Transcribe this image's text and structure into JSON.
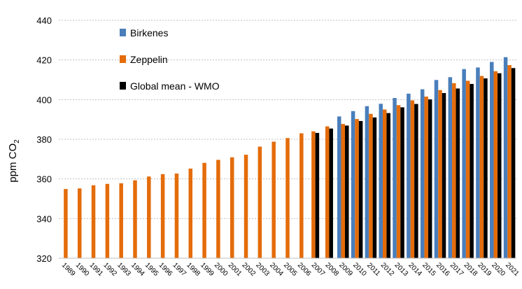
{
  "chart_data": {
    "type": "bar",
    "ylabel_main": "ppm CO",
    "ylabel_sub": "2",
    "ylim": [
      320,
      440
    ],
    "yticks": [
      "320",
      "340",
      "360",
      "380",
      "400",
      "420",
      "440"
    ],
    "grid": true,
    "legend_position": "top-left",
    "categories": [
      "1989",
      "1990",
      "1991",
      "1992",
      "1993",
      "1994",
      "1995",
      "1996",
      "1997",
      "1998",
      "1999",
      "2000",
      "2001",
      "2002",
      "2003",
      "2004",
      "2005",
      "2006",
      "2007",
      "2008",
      "2009",
      "2010",
      "2011",
      "2012",
      "2013",
      "2014",
      "2015",
      "2016",
      "2017",
      "2018",
      "2019",
      "2020",
      "2021"
    ],
    "series": [
      {
        "name": "Birkenes",
        "color": "#4a7ebb",
        "values": [
          null,
          null,
          null,
          null,
          null,
          null,
          null,
          null,
          null,
          null,
          null,
          null,
          null,
          null,
          null,
          null,
          null,
          null,
          null,
          null,
          391.5,
          394.2,
          396.7,
          397.9,
          400.8,
          403.0,
          405.2,
          409.9,
          411.3,
          415.4,
          416.2,
          419.0,
          421.4
        ]
      },
      {
        "name": "Zeppelin",
        "color": "#e46c0a",
        "values": [
          354.9,
          355.2,
          356.8,
          357.5,
          357.8,
          359.3,
          361.2,
          362.4,
          362.7,
          365.2,
          368.1,
          369.6,
          370.9,
          372.2,
          376.3,
          378.8,
          380.6,
          383.0,
          384.0,
          386.5,
          387.7,
          390.2,
          392.8,
          395.0,
          397.2,
          399.6,
          401.5,
          404.8,
          408.3,
          409.5,
          411.9,
          414.3,
          417.4
        ]
      },
      {
        "name": "Global mean - WMO",
        "color": "#000000",
        "values": [
          null,
          null,
          null,
          null,
          null,
          null,
          null,
          null,
          null,
          null,
          null,
          null,
          null,
          null,
          null,
          null,
          null,
          null,
          383.2,
          385.4,
          386.9,
          389.2,
          391.0,
          393.2,
          396.1,
          397.8,
          400.1,
          403.3,
          405.6,
          407.9,
          410.7,
          413.3,
          415.9
        ]
      }
    ]
  }
}
